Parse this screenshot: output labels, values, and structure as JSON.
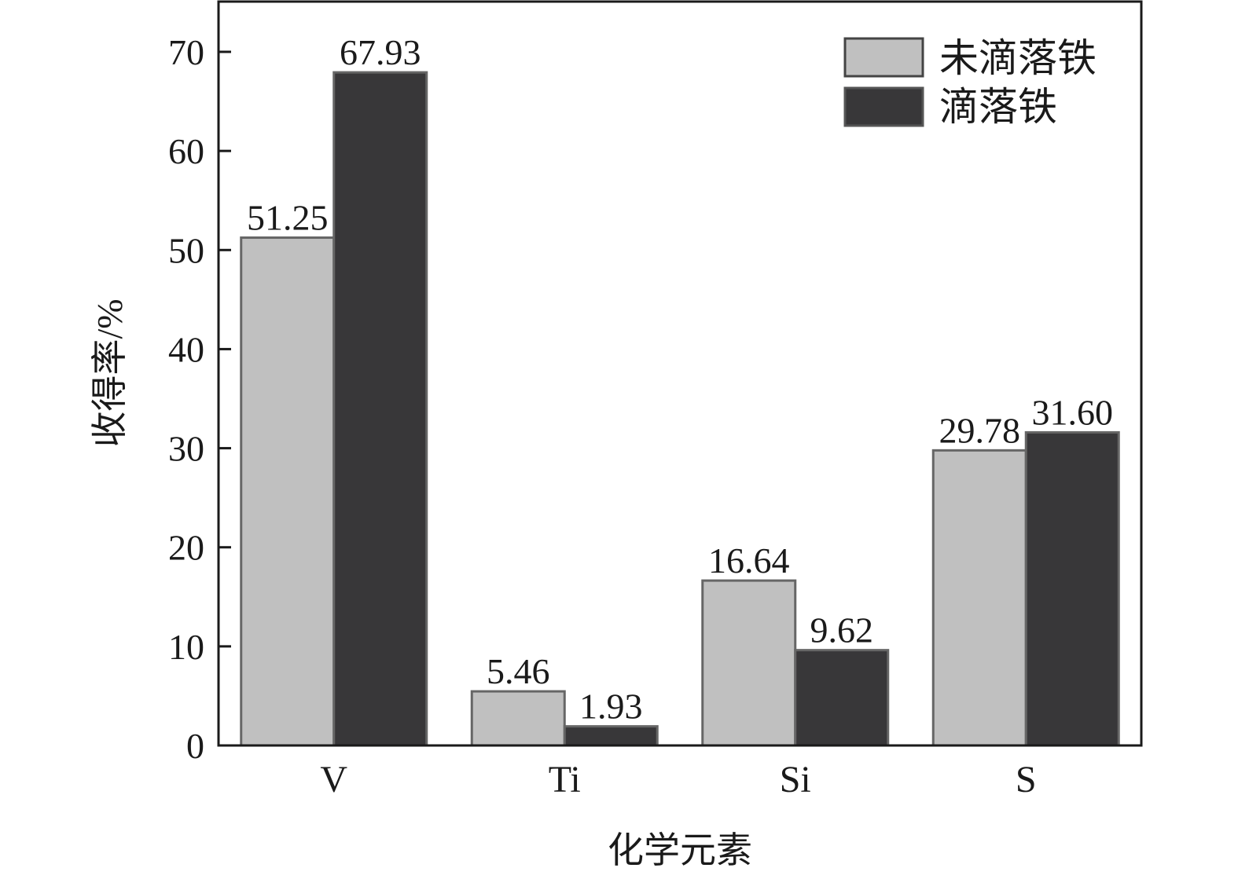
{
  "chart_data": {
    "type": "bar",
    "title": "",
    "xlabel": "化学元素",
    "ylabel": "收得率/%",
    "categories": [
      "V",
      "Ti",
      "Si",
      "S"
    ],
    "series": [
      {
        "name": "未滴落铁",
        "values": [
          51.25,
          5.46,
          16.64,
          29.78
        ],
        "labels": [
          "51.25",
          "5.46",
          "16.64",
          "29.78"
        ],
        "color": "#c0c0c0"
      },
      {
        "name": "滴落铁",
        "values": [
          67.93,
          1.93,
          9.62,
          31.6
        ],
        "labels": [
          "67.93",
          "1.93",
          "9.62",
          "31.60"
        ],
        "color": "#383739"
      }
    ],
    "ylim": [
      0,
      75
    ],
    "yticks": [
      "0",
      "10",
      "20",
      "30",
      "40",
      "50",
      "60",
      "70"
    ],
    "grid": false,
    "legend_position": "top-right"
  }
}
